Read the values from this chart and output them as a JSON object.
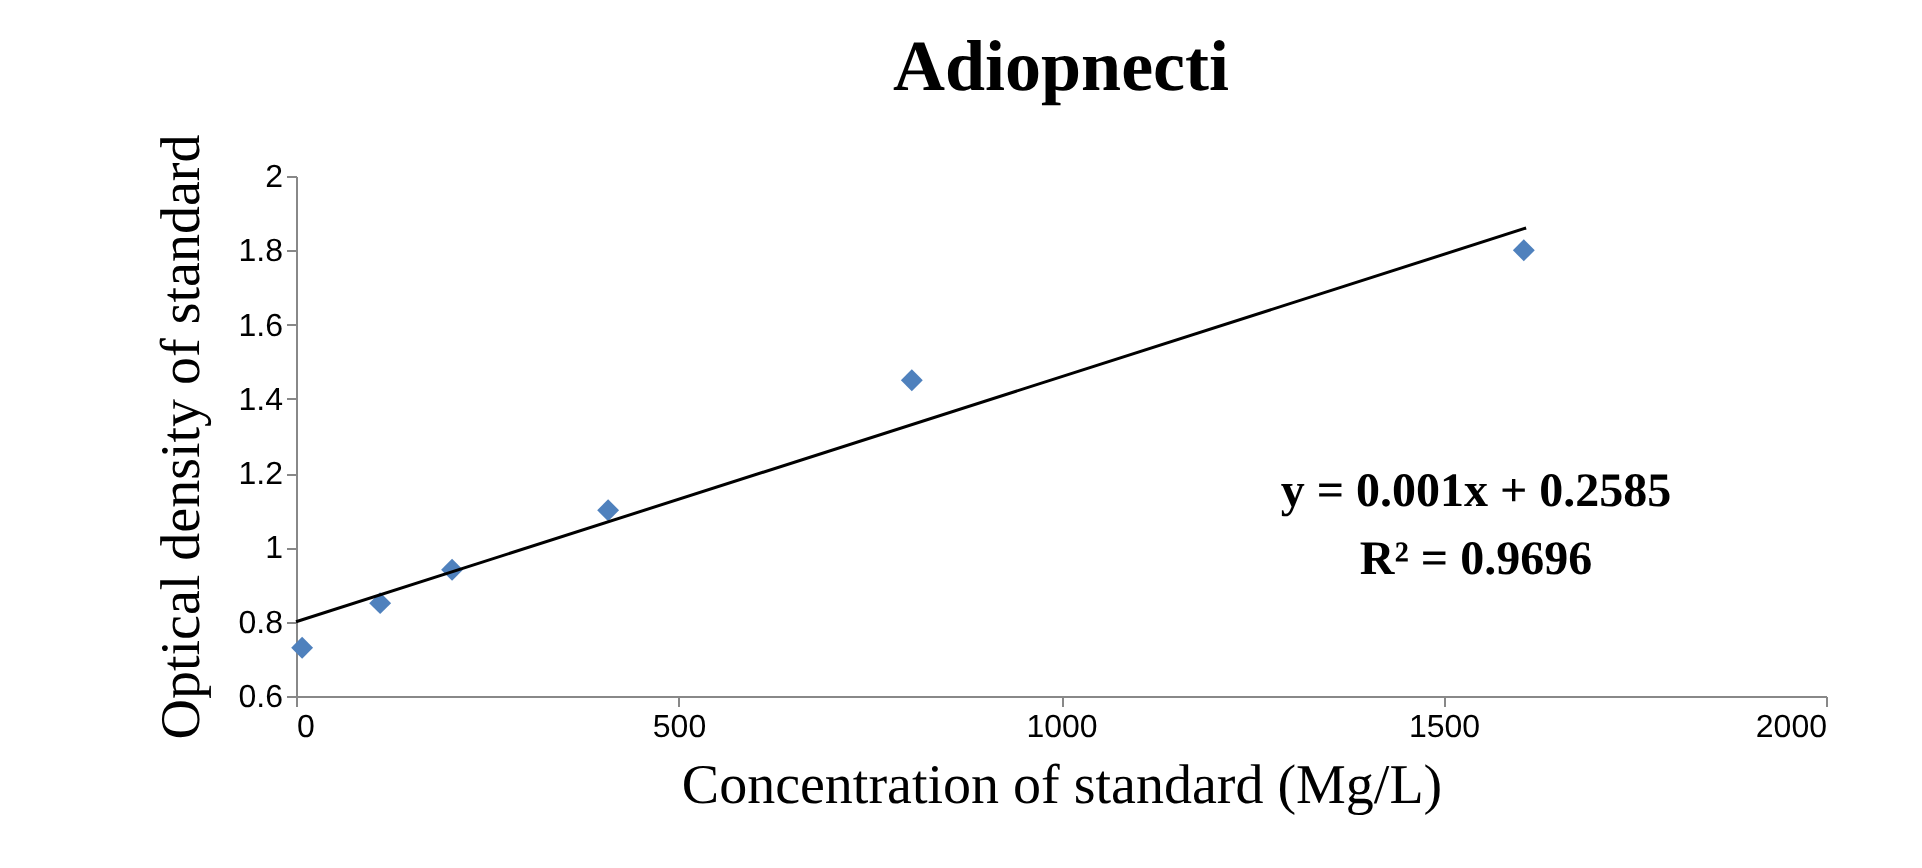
{
  "chart_data": {
    "type": "scatter",
    "title": "Adiopnecti",
    "xlabel": "Concentration of standard (Mg/L)",
    "ylabel": "Optical density of standard",
    "xlim": [
      0,
      2000
    ],
    "xticks": [
      0,
      500,
      1000,
      1500,
      2000
    ],
    "ylim": [
      0.6,
      2
    ],
    "yticks": [
      0.6,
      0.8,
      1,
      1.2,
      1.4,
      1.6,
      1.8,
      2
    ],
    "grid": false,
    "x": [
      8,
      110,
      204,
      408,
      805,
      1605
    ],
    "series": [
      {
        "type": "scatter",
        "marker": "diamond",
        "color": "#4f81bd",
        "values": [
          0.73,
          0.85,
          0.94,
          1.1,
          1.45,
          1.8
        ]
      },
      {
        "type": "line",
        "marker": "none",
        "color": "#000000",
        "x": [
          0,
          1608
        ],
        "values": [
          0.8,
          1.86
        ]
      }
    ],
    "annotations": [
      "y = 0.001x + 0.2585",
      "R² = 0.9696"
    ]
  }
}
